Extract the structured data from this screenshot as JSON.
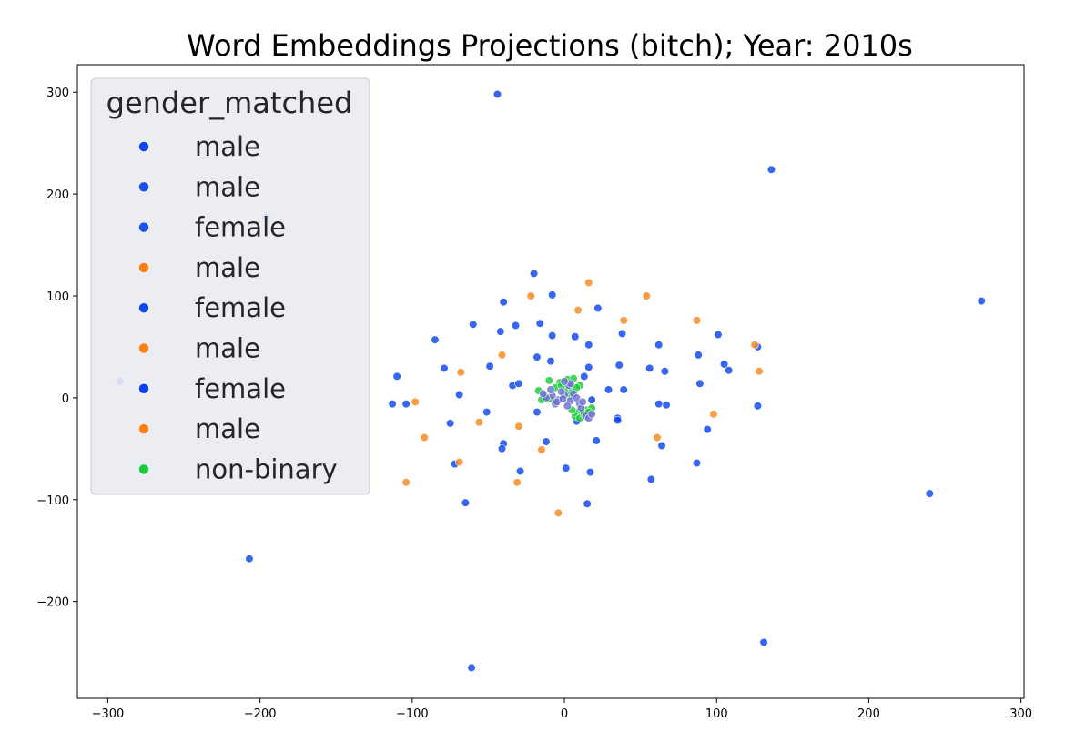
{
  "chart_data": {
    "type": "scatter",
    "title": "Word Embeddings Projections (bitch); Year: 2010s",
    "xlabel": "",
    "ylabel": "",
    "xlim": [
      -320,
      302
    ],
    "ylim": [
      -295,
      327
    ],
    "xticks": [
      -300,
      -200,
      -100,
      0,
      100,
      200,
      300
    ],
    "yticks": [
      -200,
      -100,
      0,
      100,
      200,
      300
    ],
    "xtick_labels": [
      "−300",
      "−200",
      "−100",
      "0",
      "100",
      "200",
      "300"
    ],
    "ytick_labels": [
      "−200",
      "−100",
      "0",
      "100",
      "200",
      "300"
    ],
    "grid": false,
    "legend": {
      "title": "gender_matched",
      "placement": "top-left",
      "entries": [
        {
          "label": "male",
          "color": "#0a45f5"
        },
        {
          "label": "male",
          "color": "#1a4ef0"
        },
        {
          "label": "female",
          "color": "#1c52f2"
        },
        {
          "label": "male",
          "color": "#ff7f0e"
        },
        {
          "label": "female",
          "color": "#0f48f7"
        },
        {
          "label": "male",
          "color": "#ff7f0e"
        },
        {
          "label": "female",
          "color": "#0a3ff5"
        },
        {
          "label": "male",
          "color": "#ff7f0e"
        },
        {
          "label": "non-binary",
          "color": "#1ac938"
        }
      ]
    },
    "series": [
      {
        "key": "blue",
        "color": "#0b44f0",
        "points": [
          [
            -44,
            298
          ],
          [
            136,
            224
          ],
          [
            274,
            95
          ],
          [
            -196,
            177
          ],
          [
            -292,
            16
          ],
          [
            -20,
            122
          ],
          [
            -40,
            94
          ],
          [
            -8,
            101
          ],
          [
            22,
            88
          ],
          [
            -60,
            72
          ],
          [
            -32,
            71
          ],
          [
            -16,
            73
          ],
          [
            -42,
            65
          ],
          [
            -8,
            61
          ],
          [
            7,
            60
          ],
          [
            -85,
            57
          ],
          [
            16,
            52
          ],
          [
            62,
            52
          ],
          [
            38,
            63
          ],
          [
            101,
            62
          ],
          [
            127,
            50
          ],
          [
            -18,
            40
          ],
          [
            -9,
            36
          ],
          [
            88,
            42
          ],
          [
            -79,
            29
          ],
          [
            -49,
            31
          ],
          [
            16,
            30
          ],
          [
            36,
            32
          ],
          [
            56,
            29
          ],
          [
            66,
            26
          ],
          [
            105,
            33
          ],
          [
            108,
            27
          ],
          [
            -110,
            21
          ],
          [
            -34,
            12
          ],
          [
            -30,
            14
          ],
          [
            13,
            21
          ],
          [
            89,
            14
          ],
          [
            -69,
            3
          ],
          [
            29,
            8
          ],
          [
            39,
            8
          ],
          [
            -113,
            -6
          ],
          [
            -104,
            -6
          ],
          [
            18,
            -2
          ],
          [
            62,
            -6
          ],
          [
            67,
            -7
          ],
          [
            127,
            -8
          ],
          [
            -18,
            -14
          ],
          [
            -51,
            -14
          ],
          [
            8,
            -23
          ],
          [
            35,
            -20
          ],
          [
            35,
            -22
          ],
          [
            -75,
            -25
          ],
          [
            -40,
            -45
          ],
          [
            -12,
            -43
          ],
          [
            21,
            -42
          ],
          [
            64,
            -47
          ],
          [
            94,
            -31
          ],
          [
            -41,
            -50
          ],
          [
            -72,
            -65
          ],
          [
            -29,
            -72
          ],
          [
            1,
            -69
          ],
          [
            17,
            -73
          ],
          [
            57,
            -80
          ],
          [
            87,
            -64
          ],
          [
            -65,
            -103
          ],
          [
            15,
            -104
          ],
          [
            -207,
            -158
          ],
          [
            240,
            -94
          ],
          [
            131,
            -240
          ],
          [
            -61,
            -265
          ]
        ]
      },
      {
        "key": "orange",
        "color": "#f5891f",
        "points": [
          [
            16,
            113
          ],
          [
            -22,
            100
          ],
          [
            54,
            100
          ],
          [
            9,
            86
          ],
          [
            39,
            76
          ],
          [
            87,
            76
          ],
          [
            125,
            52
          ],
          [
            -41,
            42
          ],
          [
            128,
            26
          ],
          [
            -68,
            25
          ],
          [
            -98,
            -4
          ],
          [
            98,
            -16
          ],
          [
            -56,
            -24
          ],
          [
            -30,
            -28
          ],
          [
            -92,
            -39
          ],
          [
            61,
            -39
          ],
          [
            -15,
            -51
          ],
          [
            -69,
            -63
          ],
          [
            -104,
            -83
          ],
          [
            -31,
            -83
          ],
          [
            -4,
            -113
          ]
        ]
      },
      {
        "key": "green",
        "color": "#1ac938",
        "points": [
          [
            -17,
            7
          ],
          [
            -10,
            17
          ],
          [
            -3,
            15
          ],
          [
            2,
            18
          ],
          [
            6,
            19
          ],
          [
            10,
            12
          ],
          [
            -6,
            10
          ],
          [
            1,
            9
          ],
          [
            5,
            6
          ],
          [
            -13,
            2
          ],
          [
            -10,
            -1
          ],
          [
            -15,
            -2
          ],
          [
            3,
            2
          ],
          [
            9,
            -14
          ],
          [
            14,
            -12
          ],
          [
            18,
            -10
          ],
          [
            7,
            -18
          ],
          [
            10,
            -20
          ],
          [
            13,
            -16
          ],
          [
            16,
            -14
          ],
          [
            5,
            -12
          ],
          [
            -2,
            12
          ],
          [
            8,
            10
          ]
        ]
      },
      {
        "key": "cluster_mixed",
        "color": "#6a6fd0",
        "points": [
          [
            -8,
            2
          ],
          [
            -4,
            -2
          ],
          [
            0,
            3
          ],
          [
            4,
            -3
          ],
          [
            -12,
            0
          ],
          [
            -6,
            -6
          ],
          [
            2,
            -8
          ],
          [
            6,
            4
          ],
          [
            -2,
            6
          ],
          [
            10,
            -6
          ],
          [
            14,
            -18
          ],
          [
            16,
            -20
          ],
          [
            11,
            -10
          ],
          [
            -9,
            8
          ],
          [
            3,
            12
          ],
          [
            -5,
            -4
          ],
          [
            8,
            0
          ],
          [
            12,
            -4
          ],
          [
            18,
            -16
          ],
          [
            4,
            14
          ],
          [
            -1,
            -1
          ],
          [
            0,
            16
          ],
          [
            -14,
            4
          ]
        ]
      }
    ]
  }
}
